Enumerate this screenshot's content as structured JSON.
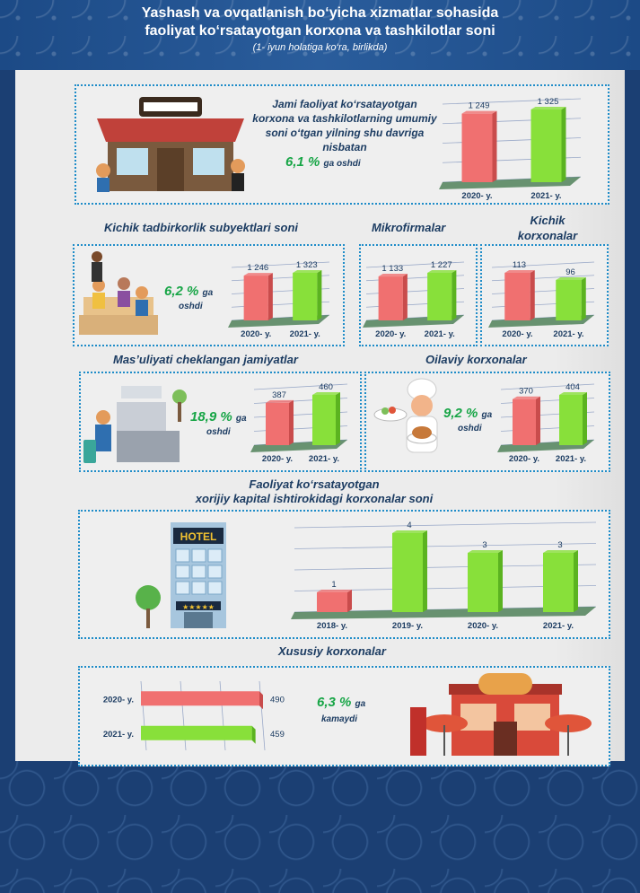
{
  "header": {
    "title_line1": "Yashash va ovqatlanish bo‘yicha xizmatlar sohasida",
    "title_line2": "faoliyat ko‘rsatayotgan korxona va tashkilotlar soni",
    "subtitle": "(1- iyun holatiga ko‘ra, birlikda)"
  },
  "colors": {
    "bar_2020": "#f07070",
    "bar_2021": "#88e03a",
    "frame": "#1e8cc8",
    "text": "#1c3c62",
    "pct": "#17a546"
  },
  "icons": [
    "restaurant-illustration",
    "cafe-people-illustration",
    "hotel-reception-illustration",
    "chef-illustration",
    "hotel-building-illustration",
    "cafe-storefront-illustration"
  ],
  "total": {
    "text": "Jami faoliyat ko‘rsatayotgan korxona va tashkilotlarning umumiy soni o‘tgan yilning shu davriga nisbatan",
    "pct": "6,1 %",
    "change": "ga oshdi"
  },
  "small_business": {
    "title": "Kichik tadbirkorlik subyektlari soni",
    "pct": "6,2 %",
    "ga": "ga",
    "change": "oshdi"
  },
  "micro": {
    "title": "Mikrofirmalar"
  },
  "small_enterprises": {
    "title": "Kichik korxonalar"
  },
  "llc": {
    "title": "Mas’uliyati cheklangan jamiyatlar",
    "pct": "18,9 %",
    "ga": "ga",
    "change": "oshdi"
  },
  "family": {
    "title": "Oilaviy korxonalar",
    "pct": "9,2 %",
    "ga": "ga",
    "change": "oshdi"
  },
  "foreign": {
    "title_line1": "Faoliyat ko‘rsatayotgan",
    "title_line2": "xorijiy kapital ishtirokidagi korxonalar soni"
  },
  "private": {
    "title": "Xususiy korxonalar",
    "pct": "6,3 %",
    "ga": "ga",
    "change": "kamaydi"
  },
  "chart_data": [
    {
      "type": "bar",
      "id": "total",
      "categories": [
        "2020- y.",
        "2021- y."
      ],
      "values": [
        1249,
        1325
      ],
      "value_labels": [
        "1 249",
        "1 325"
      ]
    },
    {
      "type": "bar",
      "id": "small_business",
      "categories": [
        "2020- y.",
        "2021- y."
      ],
      "values": [
        1246,
        1323
      ],
      "value_labels": [
        "1 246",
        "1 323"
      ]
    },
    {
      "type": "bar",
      "id": "micro",
      "categories": [
        "2020- y.",
        "2021- y."
      ],
      "values": [
        1133,
        1227
      ],
      "value_labels": [
        "1 133",
        "1 227"
      ]
    },
    {
      "type": "bar",
      "id": "small_enterprises",
      "categories": [
        "2020- y.",
        "2021- y."
      ],
      "values": [
        113,
        96
      ],
      "value_labels": [
        "113",
        "96"
      ]
    },
    {
      "type": "bar",
      "id": "llc",
      "categories": [
        "2020- y.",
        "2021- y."
      ],
      "values": [
        387,
        460
      ],
      "value_labels": [
        "387",
        "460"
      ]
    },
    {
      "type": "bar",
      "id": "family",
      "categories": [
        "2020- y.",
        "2021- y."
      ],
      "values": [
        370,
        404
      ],
      "value_labels": [
        "370",
        "404"
      ]
    },
    {
      "type": "bar",
      "id": "foreign",
      "categories": [
        "2018- y.",
        "2019- y.",
        "2020- y.",
        "2021- y."
      ],
      "values": [
        1,
        4,
        3,
        3
      ],
      "value_labels": [
        "1",
        "4",
        "3",
        "3"
      ]
    },
    {
      "type": "bar",
      "id": "private",
      "orientation": "horizontal",
      "categories": [
        "2020- y.",
        "2021- y."
      ],
      "values": [
        490,
        459
      ],
      "value_labels": [
        "490",
        "459"
      ]
    }
  ]
}
